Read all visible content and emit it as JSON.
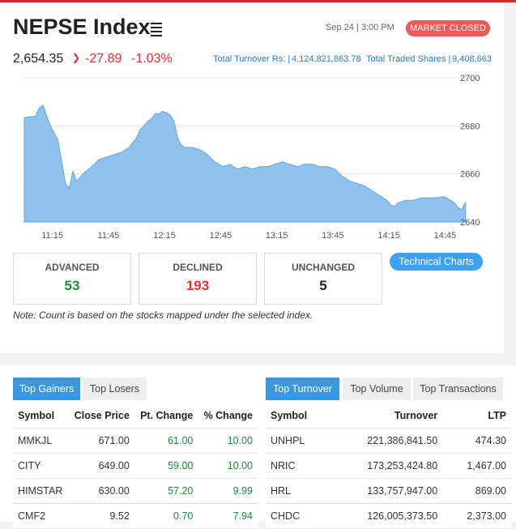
{
  "header": {
    "title": "NEPSE Index",
    "datetime": "Sep 24 | 3:00 PM",
    "market_status": "MARKET CLOSED",
    "index_value": "2,654.35",
    "change_points": "-27.89",
    "change_percent": "-1.03%",
    "turnover_label": "Total Turnover Rs: |",
    "turnover_value": "4,124,821,863.78",
    "shares_label": "Total Traded Shares |",
    "shares_value": "9,408,663"
  },
  "chart_data": {
    "type": "area",
    "ylim": [
      2640,
      2700
    ],
    "y_ticks": [
      "2700",
      "2680",
      "2660",
      "2640"
    ],
    "x_ticks": [
      "11:15",
      "11:45",
      "12:15",
      "12:45",
      "13:15",
      "13:45",
      "14:15",
      "14:45"
    ],
    "color": "#8fc3ee",
    "x": [
      "11:00",
      "11:06",
      "11:08",
      "11:10",
      "11:12",
      "11:14",
      "11:16",
      "11:18",
      "11:20",
      "11:22",
      "11:24",
      "11:26",
      "11:28",
      "11:32",
      "11:36",
      "11:40",
      "11:44",
      "11:48",
      "11:52",
      "11:56",
      "11:58",
      "12:00",
      "12:02",
      "12:04",
      "12:06",
      "12:08",
      "12:10",
      "12:12",
      "12:14",
      "12:16",
      "12:18",
      "12:20",
      "12:22",
      "12:24",
      "12:26",
      "12:30",
      "12:34",
      "12:38",
      "12:42",
      "12:46",
      "12:50",
      "12:54",
      "12:58",
      "13:02",
      "13:06",
      "13:10",
      "13:14",
      "13:18",
      "13:22",
      "13:26",
      "13:30",
      "13:34",
      "13:38",
      "13:42",
      "13:46",
      "13:50",
      "13:54",
      "13:58",
      "14:02",
      "14:06",
      "14:10",
      "14:14",
      "14:16",
      "14:18",
      "14:20",
      "14:24",
      "14:28",
      "14:32",
      "14:36",
      "14:40",
      "14:44",
      "14:46",
      "14:48",
      "14:50",
      "14:52",
      "14:54",
      "14:55",
      "14:56"
    ],
    "y": [
      2683.5,
      2684,
      2687.5,
      2688.5,
      2684,
      2680,
      2677,
      2674,
      2665,
      2656,
      2654,
      2661,
      2657,
      2660.5,
      2663,
      2666,
      2667,
      2668,
      2669,
      2671,
      2673,
      2675,
      2678.5,
      2680,
      2682,
      2683,
      2685,
      2685,
      2686,
      2685.5,
      2684.5,
      2682,
      2675,
      2672,
      2671,
      2671,
      2670,
      2668,
      2665,
      2663,
      2664,
      2662,
      2663,
      2662,
      2663,
      2663,
      2664,
      2665,
      2664,
      2663,
      2664,
      2664,
      2663,
      2663,
      2662,
      2659,
      2657,
      2656,
      2655,
      2653,
      2651,
      2649,
      2647,
      2646.5,
      2648,
      2649,
      2649,
      2650,
      2650,
      2650,
      2650.5,
      2650,
      2649,
      2648,
      2646,
      2645,
      2647,
      2648
    ]
  },
  "stats": {
    "advanced_label": "ADVANCED",
    "advanced_value": "53",
    "declined_label": "DECLINED",
    "declined_value": "193",
    "unchanged_label": "UNCHANGED",
    "unchanged_value": "5"
  },
  "technical_charts_label": "Technical Charts",
  "note": "Note: Count is based on the stocks mapped under the selected index.",
  "left_tabs": [
    "Top Gainers",
    "Top Losers"
  ],
  "left_table": {
    "headers": [
      "Symbol",
      "Close Price",
      "Pt. Change",
      "% Change"
    ],
    "rows": [
      [
        "MMKJL",
        "671.00",
        "61.00",
        "10.00"
      ],
      [
        "CITY",
        "649.00",
        "59.00",
        "10.00"
      ],
      [
        "HIMSTAR",
        "630.00",
        "57.20",
        "9.99"
      ],
      [
        "CMF2",
        "9.52",
        "0.70",
        "7.94"
      ]
    ]
  },
  "right_tabs": [
    "Top Turnover",
    "Top Volume",
    "Top Transactions"
  ],
  "right_table": {
    "headers": [
      "Symbol",
      "Turnover",
      "LTP"
    ],
    "rows": [
      [
        "UNHPL",
        "221,386,841.50",
        "474.30"
      ],
      [
        "NRIC",
        "173,253,424.80",
        "1,467.00"
      ],
      [
        "HRL",
        "133,757,947.00",
        "869.00"
      ],
      [
        "CHDC",
        "126,005,373.50",
        "2,373.00"
      ]
    ]
  },
  "colors": {
    "accent": "#3d97dd",
    "negative": "#e03131",
    "positive": "#1e8c3a",
    "badge": "#f05a5a"
  }
}
